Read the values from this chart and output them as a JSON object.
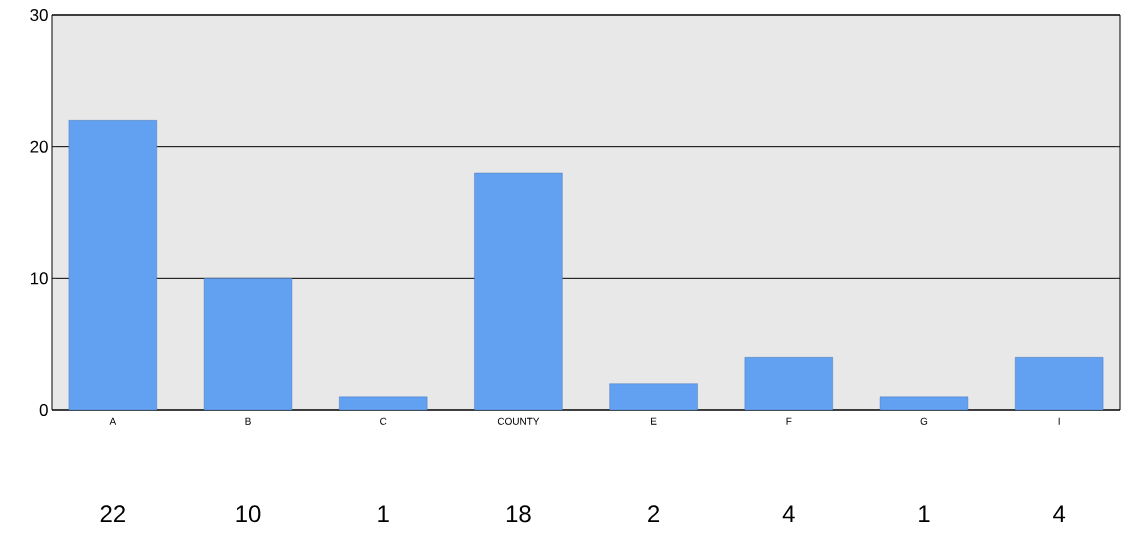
{
  "chart_data": {
    "type": "bar",
    "categories": [
      "A",
      "B",
      "C",
      "COUNTY",
      "E",
      "F",
      "G",
      "I"
    ],
    "values": [
      22,
      10,
      1,
      18,
      2,
      4,
      1,
      4
    ],
    "color": "#62a0f2",
    "ylim": [
      0,
      30
    ],
    "yticks": [
      0,
      10,
      20,
      30
    ],
    "grid": "y",
    "data_labels": true
  }
}
